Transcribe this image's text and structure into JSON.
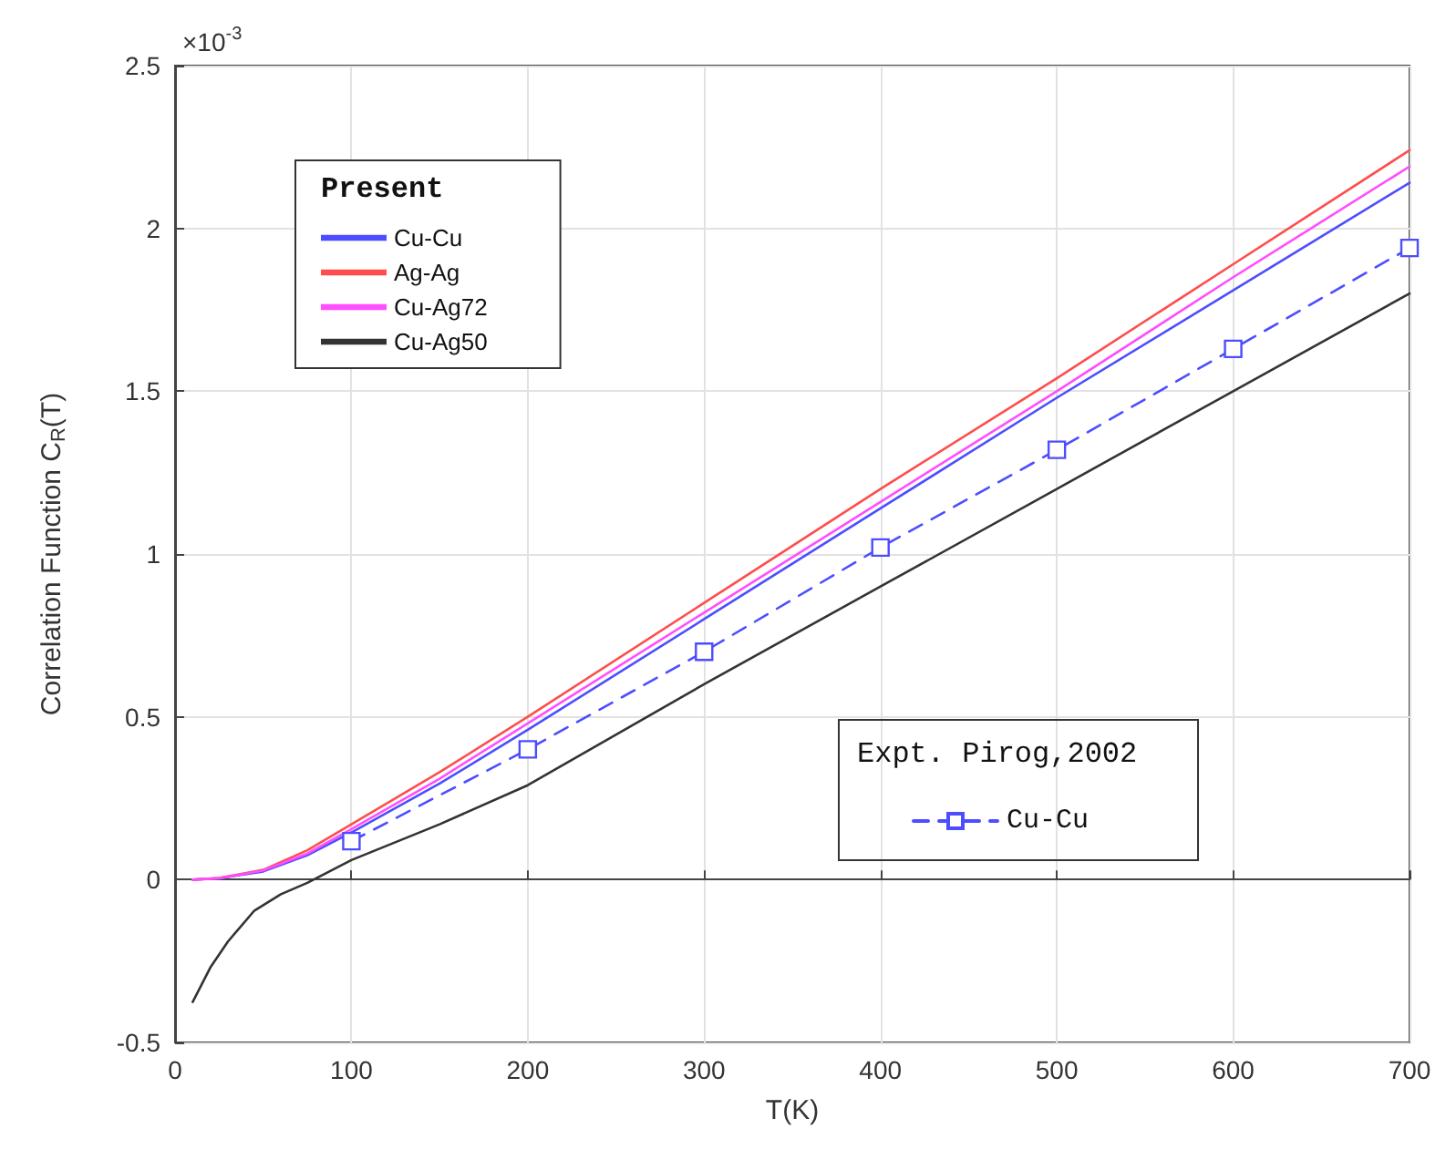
{
  "chart_data": {
    "type": "line",
    "xlabel": "T(K)",
    "ylabel": "Correlation Function C$_{R}$(T)",
    "xlim": [
      0,
      700
    ],
    "xticks": [
      0,
      100,
      200,
      300,
      400,
      500,
      600,
      700
    ],
    "ylim": [
      -0.5,
      2.5
    ],
    "yticks": [
      -0.5,
      0,
      0.5,
      1,
      1.5,
      2,
      2.5
    ],
    "grid": true,
    "legend": "top left",
    "legend_title": "Present",
    "marker": "none",
    "line_style": "solid",
    "annotations": [
      "×10$^{-3}$",
      "Expt. Pirog,2002"
    ],
    "series": [
      {
        "name": "Cu-Cu",
        "color": "#4d4dff",
        "x": [
          10,
          25,
          50,
          75,
          100,
          150,
          200,
          300,
          400,
          500,
          600,
          700
        ],
        "values": [
          0,
          0.004,
          0.025,
          0.075,
          0.145,
          0.295,
          0.46,
          0.8,
          1.14,
          1.48,
          1.81,
          2.14
        ]
      },
      {
        "name": "Ag-Ag",
        "color": "#ff4d4d",
        "x": [
          10,
          25,
          50,
          75,
          100,
          150,
          200,
          300,
          400,
          500,
          600,
          700
        ],
        "values": [
          0,
          0.005,
          0.03,
          0.09,
          0.17,
          0.33,
          0.5,
          0.85,
          1.2,
          1.54,
          1.89,
          2.24
        ]
      },
      {
        "name": "Cu-Ag72",
        "color": "#ff4dff",
        "x": [
          10,
          25,
          50,
          75,
          100,
          150,
          200,
          300,
          400,
          500,
          600,
          700
        ],
        "values": [
          0,
          0.004,
          0.028,
          0.08,
          0.155,
          0.31,
          0.48,
          0.82,
          1.16,
          1.5,
          1.85,
          2.19
        ]
      },
      {
        "name": "Cu-Ag50",
        "color": "#333333",
        "x": [
          10,
          20,
          30,
          45,
          60,
          75,
          100,
          150,
          200,
          300,
          400,
          500,
          600,
          700
        ],
        "values": [
          -0.376,
          -0.27,
          -0.19,
          -0.095,
          -0.045,
          -0.01,
          0.06,
          0.17,
          0.29,
          0.6,
          0.9,
          1.2,
          1.5,
          1.8
        ]
      },
      {
        "name": "Cu-Cu",
        "color": "#4d4dff",
        "marker": "square",
        "line_style": "dashed",
        "x": [
          100,
          200,
          300,
          400,
          500,
          600,
          700
        ],
        "values": [
          0.118,
          0.4,
          0.7,
          1.02,
          1.32,
          1.63,
          1.94
        ]
      }
    ]
  }
}
